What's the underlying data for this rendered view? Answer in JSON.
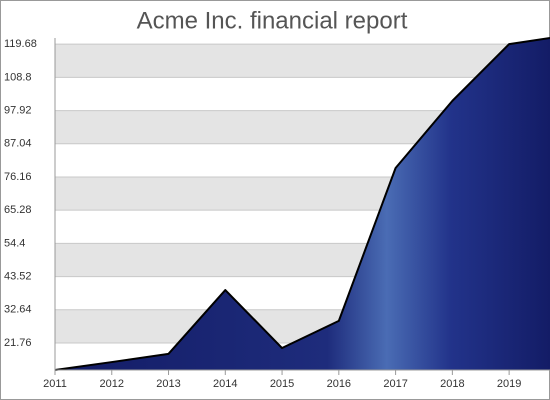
{
  "chart_data": {
    "type": "area",
    "title": "Acme Inc. financial report",
    "x": [
      2011,
      2012,
      2013,
      2014,
      2015,
      2016,
      2017,
      2018,
      2019,
      2019.72
    ],
    "values": [
      12.9,
      15.5,
      18.2,
      39.1,
      20.1,
      29.0,
      79.1,
      101.1,
      119.7,
      121.7
    ],
    "color": "#1a2470",
    "xlim": [
      2011,
      2019.72
    ],
    "xticks": [
      2011,
      2012,
      2013,
      2014,
      2015,
      2016,
      2017,
      2018,
      2019
    ],
    "ylim": [
      12.9,
      121.7
    ],
    "yticks": [
      21.76,
      32.64,
      43.52,
      54.4,
      65.28,
      76.16,
      87.04,
      97.92,
      108.8,
      119.68
    ],
    "grid": true
  }
}
